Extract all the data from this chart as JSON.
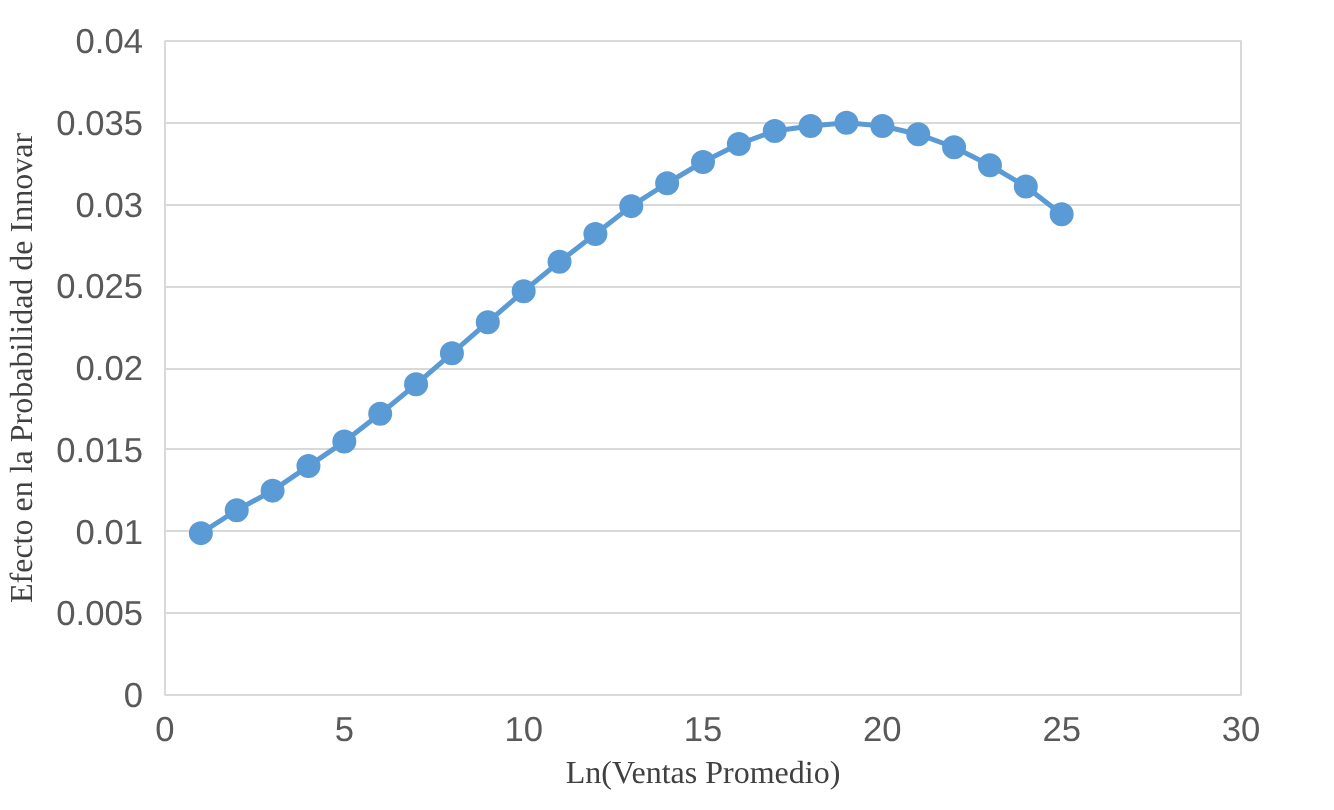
{
  "chart_data": {
    "type": "line",
    "xlabel": "Ln(Ventas Promedio)",
    "ylabel": "Efecto en la Probabilidad de Innovar",
    "x": [
      1,
      2,
      3,
      4,
      5,
      6,
      7,
      8,
      9,
      10,
      11,
      12,
      13,
      14,
      15,
      16,
      17,
      18,
      19,
      20,
      21,
      22,
      23,
      24,
      25
    ],
    "series": [
      {
        "color": "#5b9bd5",
        "values": [
          0.0099,
          0.0113,
          0.0125,
          0.014,
          0.0155,
          0.0172,
          0.019,
          0.0209,
          0.0228,
          0.0247,
          0.0265,
          0.0282,
          0.0299,
          0.0313,
          0.0326,
          0.0337,
          0.0345,
          0.0348,
          0.035,
          0.0348,
          0.0343,
          0.0335,
          0.0324,
          0.0311,
          0.0294
        ]
      }
    ],
    "xlim": [
      0,
      30
    ],
    "xticks": [
      0,
      5,
      10,
      15,
      20,
      25,
      30
    ],
    "ylim": [
      0,
      0.04
    ],
    "yticks": [
      0,
      0.005,
      0.01,
      0.015,
      0.02,
      0.025,
      0.03,
      0.035,
      0.04
    ],
    "grid": "y",
    "marker": "circle",
    "line_style": "solid"
  }
}
